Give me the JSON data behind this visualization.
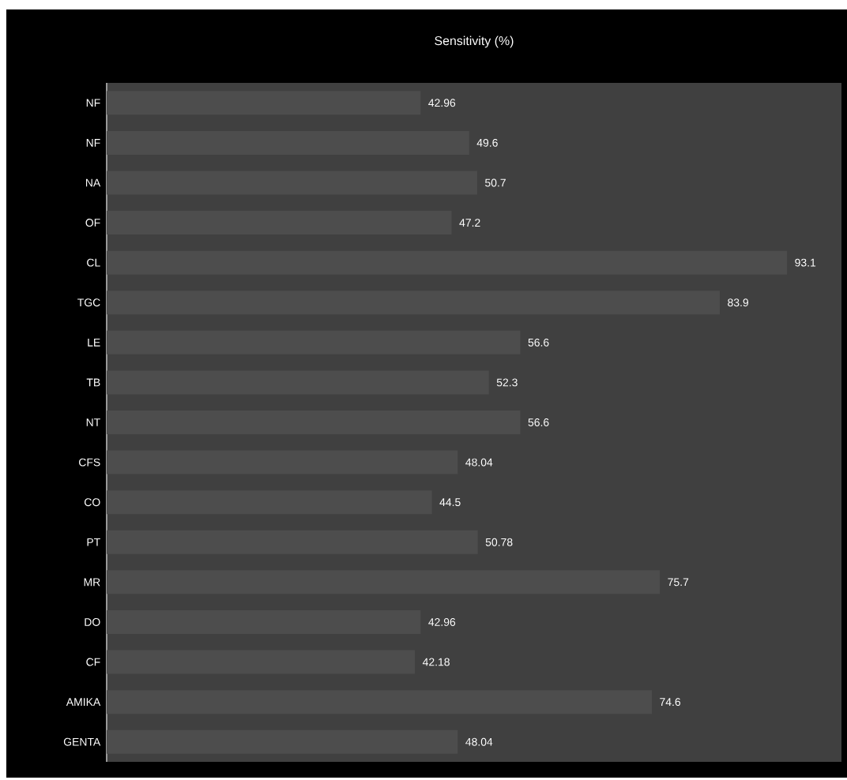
{
  "chart_data": {
    "type": "bar",
    "orientation": "horizontal",
    "title": "Sensitivity (%)",
    "categories": [
      "NF",
      "NF",
      "NA",
      "OF",
      "CL",
      "TGC",
      "LE",
      "TB",
      "NT",
      "CFS",
      "CO",
      "PT",
      "MR",
      "DO",
      "CF",
      "AMIKA",
      "GENTA"
    ],
    "values": [
      42.96,
      49.6,
      50.7,
      47.2,
      93.1,
      83.9,
      56.6,
      52.3,
      56.6,
      48.04,
      44.5,
      50.78,
      75.7,
      42.96,
      42.18,
      74.6,
      48.04
    ],
    "color": "#4d4d4d",
    "data_labels": true
  }
}
